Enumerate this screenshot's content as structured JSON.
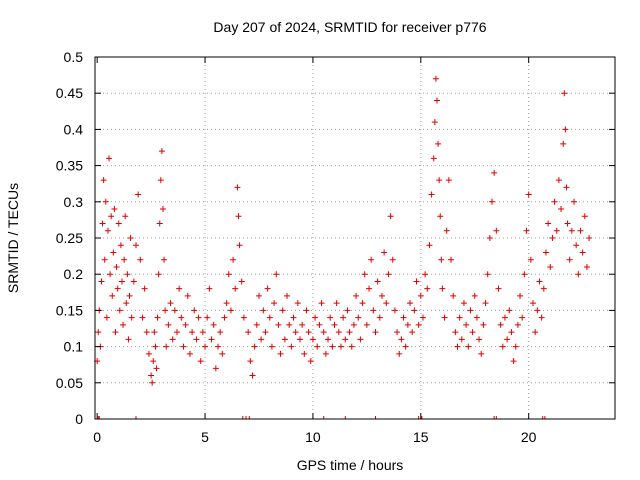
{
  "chart_data": {
    "type": "scatter",
    "title": "Day 207 of 2024, SRMTID for receiver p776",
    "xlabel": "GPS time / hours",
    "ylabel": "SRMTID / TECUs",
    "xlim": [
      -0.1,
      24
    ],
    "ylim": [
      0,
      0.5
    ],
    "xticks": [
      0,
      5,
      10,
      15,
      20
    ],
    "xtick_labels": [
      "0",
      "5",
      "10",
      "15",
      "20"
    ],
    "yticks": [
      0,
      0.05,
      0.1,
      0.15,
      0.2,
      0.25,
      0.3,
      0.35,
      0.4,
      0.45,
      0.5
    ],
    "ytick_labels": [
      "0",
      "0.05",
      "0.1",
      "0.15",
      "0.2",
      "0.25",
      "0.3",
      "0.35",
      "0.4",
      "0.45",
      "0.5"
    ],
    "grid": true,
    "marker": "+",
    "color": "#e00000",
    "series": [
      {
        "name": "SRMTID",
        "points": [
          [
            0.0,
            0.08
          ],
          [
            0.05,
            0.12
          ],
          [
            0.1,
            0.15
          ],
          [
            0.15,
            0.1
          ],
          [
            0.2,
            0.19
          ],
          [
            0.25,
            0.27
          ],
          [
            0.3,
            0.33
          ],
          [
            0.35,
            0.22
          ],
          [
            0.4,
            0.3
          ],
          [
            0.45,
            0.14
          ],
          [
            0.5,
            0.26
          ],
          [
            0.55,
            0.36
          ],
          [
            0.6,
            0.2
          ],
          [
            0.65,
            0.28
          ],
          [
            0.7,
            0.17
          ],
          [
            0.75,
            0.23
          ],
          [
            0.8,
            0.29
          ],
          [
            0.85,
            0.12
          ],
          [
            0.9,
            0.21
          ],
          [
            0.95,
            0.18
          ],
          [
            1.0,
            0.27
          ],
          [
            1.05,
            0.15
          ],
          [
            1.1,
            0.24
          ],
          [
            1.15,
            0.19
          ],
          [
            1.2,
            0.13
          ],
          [
            1.25,
            0.22
          ],
          [
            1.3,
            0.28
          ],
          [
            1.35,
            0.16
          ],
          [
            1.4,
            0.2
          ],
          [
            1.45,
            0.11
          ],
          [
            1.5,
            0.17
          ],
          [
            1.55,
            0.25
          ],
          [
            1.6,
            0.14
          ],
          [
            1.7,
            0.19
          ],
          [
            1.8,
            0.24
          ],
          [
            1.9,
            0.31
          ],
          [
            2.0,
            0.22
          ],
          [
            2.1,
            0.14
          ],
          [
            2.2,
            0.18
          ],
          [
            2.3,
            0.12
          ],
          [
            2.4,
            0.09
          ],
          [
            2.5,
            0.06
          ],
          [
            2.55,
            0.05
          ],
          [
            2.6,
            0.08
          ],
          [
            2.65,
            0.12
          ],
          [
            2.7,
            0.1
          ],
          [
            2.75,
            0.07
          ],
          [
            2.8,
            0.14
          ],
          [
            2.85,
            0.2
          ],
          [
            2.9,
            0.27
          ],
          [
            2.95,
            0.33
          ],
          [
            3.0,
            0.37
          ],
          [
            3.05,
            0.29
          ],
          [
            3.1,
            0.22
          ],
          [
            3.15,
            0.15
          ],
          [
            3.2,
            0.1
          ],
          [
            3.3,
            0.13
          ],
          [
            3.4,
            0.16
          ],
          [
            3.5,
            0.11
          ],
          [
            3.6,
            0.15
          ],
          [
            3.7,
            0.12
          ],
          [
            3.8,
            0.18
          ],
          [
            3.9,
            0.14
          ],
          [
            4.0,
            0.1
          ],
          [
            4.1,
            0.13
          ],
          [
            4.2,
            0.17
          ],
          [
            4.3,
            0.09
          ],
          [
            4.4,
            0.12
          ],
          [
            4.5,
            0.15
          ],
          [
            4.6,
            0.11
          ],
          [
            4.7,
            0.14
          ],
          [
            4.8,
            0.08
          ],
          [
            4.9,
            0.12
          ],
          [
            5.0,
            0.1
          ],
          [
            5.1,
            0.14
          ],
          [
            5.2,
            0.18
          ],
          [
            5.3,
            0.11
          ],
          [
            5.4,
            0.13
          ],
          [
            5.5,
            0.07
          ],
          [
            5.6,
            0.1
          ],
          [
            5.7,
            0.12
          ],
          [
            5.8,
            0.09
          ],
          [
            5.9,
            0.14
          ],
          [
            6.0,
            0.16
          ],
          [
            6.1,
            0.2
          ],
          [
            6.2,
            0.15
          ],
          [
            6.3,
            0.22
          ],
          [
            6.4,
            0.18
          ],
          [
            6.5,
            0.32
          ],
          [
            6.55,
            0.28
          ],
          [
            6.6,
            0.24
          ],
          [
            6.7,
            0.19
          ],
          [
            6.8,
            0.14
          ],
          [
            7.0,
            0.12
          ],
          [
            7.1,
            0.08
          ],
          [
            7.2,
            0.06
          ],
          [
            7.3,
            0.1
          ],
          [
            7.4,
            0.13
          ],
          [
            7.5,
            0.17
          ],
          [
            7.6,
            0.11
          ],
          [
            7.7,
            0.15
          ],
          [
            7.8,
            0.12
          ],
          [
            7.9,
            0.18
          ],
          [
            8.0,
            0.14
          ],
          [
            8.1,
            0.1
          ],
          [
            8.2,
            0.16
          ],
          [
            8.3,
            0.2
          ],
          [
            8.4,
            0.13
          ],
          [
            8.5,
            0.09
          ],
          [
            8.6,
            0.15
          ],
          [
            8.7,
            0.11
          ],
          [
            8.8,
            0.17
          ],
          [
            8.9,
            0.13
          ],
          [
            9.0,
            0.1
          ],
          [
            9.1,
            0.14
          ],
          [
            9.2,
            0.12
          ],
          [
            9.3,
            0.16
          ],
          [
            9.4,
            0.11
          ],
          [
            9.5,
            0.13
          ],
          [
            9.6,
            0.09
          ],
          [
            9.7,
            0.15
          ],
          [
            9.8,
            0.12
          ],
          [
            9.9,
            0.08
          ],
          [
            10.0,
            0.11
          ],
          [
            10.1,
            0.14
          ],
          [
            10.2,
            0.1
          ],
          [
            10.3,
            0.13
          ],
          [
            10.4,
            0.16
          ],
          [
            10.5,
            0.12
          ],
          [
            10.6,
            0.09
          ],
          [
            10.7,
            0.11
          ],
          [
            10.8,
            0.14
          ],
          [
            10.9,
            0.1
          ],
          [
            11.0,
            0.13
          ],
          [
            11.1,
            0.16
          ],
          [
            11.2,
            0.12
          ],
          [
            11.3,
            0.1
          ],
          [
            11.4,
            0.14
          ],
          [
            11.5,
            0.11
          ],
          [
            11.6,
            0.15
          ],
          [
            11.7,
            0.12
          ],
          [
            11.8,
            0.1
          ],
          [
            11.9,
            0.13
          ],
          [
            12.0,
            0.17
          ],
          [
            12.1,
            0.14
          ],
          [
            12.2,
            0.11
          ],
          [
            12.3,
            0.16
          ],
          [
            12.4,
            0.2
          ],
          [
            12.5,
            0.13
          ],
          [
            12.6,
            0.18
          ],
          [
            12.7,
            0.22
          ],
          [
            12.8,
            0.15
          ],
          [
            12.9,
            0.12
          ],
          [
            13.0,
            0.19
          ],
          [
            13.1,
            0.14
          ],
          [
            13.2,
            0.17
          ],
          [
            13.3,
            0.23
          ],
          [
            13.4,
            0.16
          ],
          [
            13.5,
            0.2
          ],
          [
            13.6,
            0.28
          ],
          [
            13.7,
            0.22
          ],
          [
            13.8,
            0.15
          ],
          [
            13.9,
            0.12
          ],
          [
            14.0,
            0.09
          ],
          [
            14.1,
            0.11
          ],
          [
            14.2,
            0.14
          ],
          [
            14.3,
            0.1
          ],
          [
            14.4,
            0.13
          ],
          [
            14.5,
            0.16
          ],
          [
            14.6,
            0.12
          ],
          [
            14.7,
            0.15
          ],
          [
            14.8,
            0.19
          ],
          [
            14.9,
            0.13
          ],
          [
            15.0,
            0.17
          ],
          [
            15.1,
            0.14
          ],
          [
            15.2,
            0.2
          ],
          [
            15.3,
            0.18
          ],
          [
            15.4,
            0.24
          ],
          [
            15.5,
            0.31
          ],
          [
            15.6,
            0.36
          ],
          [
            15.65,
            0.41
          ],
          [
            15.7,
            0.47
          ],
          [
            15.75,
            0.44
          ],
          [
            15.8,
            0.38
          ],
          [
            15.85,
            0.33
          ],
          [
            15.9,
            0.28
          ],
          [
            15.95,
            0.22
          ],
          [
            16.0,
            0.18
          ],
          [
            16.1,
            0.14
          ],
          [
            16.2,
            0.26
          ],
          [
            16.3,
            0.33
          ],
          [
            16.4,
            0.22
          ],
          [
            16.5,
            0.17
          ],
          [
            16.6,
            0.12
          ],
          [
            16.7,
            0.1
          ],
          [
            16.8,
            0.14
          ],
          [
            16.9,
            0.11
          ],
          [
            17.0,
            0.16
          ],
          [
            17.1,
            0.13
          ],
          [
            17.2,
            0.1
          ],
          [
            17.3,
            0.15
          ],
          [
            17.4,
            0.12
          ],
          [
            17.5,
            0.17
          ],
          [
            17.6,
            0.14
          ],
          [
            17.7,
            0.11
          ],
          [
            17.8,
            0.09
          ],
          [
            17.9,
            0.13
          ],
          [
            18.0,
            0.16
          ],
          [
            18.1,
            0.2
          ],
          [
            18.2,
            0.25
          ],
          [
            18.3,
            0.3
          ],
          [
            18.4,
            0.34
          ],
          [
            18.5,
            0.26
          ],
          [
            18.6,
            0.18
          ],
          [
            18.7,
            0.13
          ],
          [
            18.8,
            0.1
          ],
          [
            18.9,
            0.14
          ],
          [
            19.0,
            0.11
          ],
          [
            19.1,
            0.15
          ],
          [
            19.2,
            0.12
          ],
          [
            19.3,
            0.08
          ],
          [
            19.4,
            0.1
          ],
          [
            19.5,
            0.13
          ],
          [
            19.6,
            0.17
          ],
          [
            19.7,
            0.14
          ],
          [
            19.8,
            0.2
          ],
          [
            19.9,
            0.26
          ],
          [
            20.0,
            0.31
          ],
          [
            20.1,
            0.22
          ],
          [
            20.2,
            0.16
          ],
          [
            20.3,
            0.12
          ],
          [
            20.4,
            0.15
          ],
          [
            20.5,
            0.19
          ],
          [
            20.6,
            0.14
          ],
          [
            20.7,
            0.18
          ],
          [
            20.8,
            0.23
          ],
          [
            20.9,
            0.27
          ],
          [
            21.0,
            0.21
          ],
          [
            21.1,
            0.25
          ],
          [
            21.2,
            0.3
          ],
          [
            21.3,
            0.26
          ],
          [
            21.4,
            0.33
          ],
          [
            21.5,
            0.29
          ],
          [
            21.6,
            0.38
          ],
          [
            21.65,
            0.45
          ],
          [
            21.7,
            0.4
          ],
          [
            21.75,
            0.32
          ],
          [
            21.8,
            0.27
          ],
          [
            21.9,
            0.22
          ],
          [
            22.0,
            0.26
          ],
          [
            22.1,
            0.3
          ],
          [
            22.2,
            0.24
          ],
          [
            22.3,
            0.2
          ],
          [
            22.4,
            0.26
          ],
          [
            22.5,
            0.23
          ],
          [
            22.6,
            0.28
          ],
          [
            22.7,
            0.21
          ],
          [
            22.8,
            0.25
          ]
        ]
      }
    ],
    "zero_markers_x": [
      0.05,
      0.1,
      1.8,
      6.75,
      6.9,
      7.05,
      10.5,
      11.5,
      12.9,
      14.9,
      15.05,
      18.4,
      18.5,
      20.65,
      20.75
    ]
  }
}
